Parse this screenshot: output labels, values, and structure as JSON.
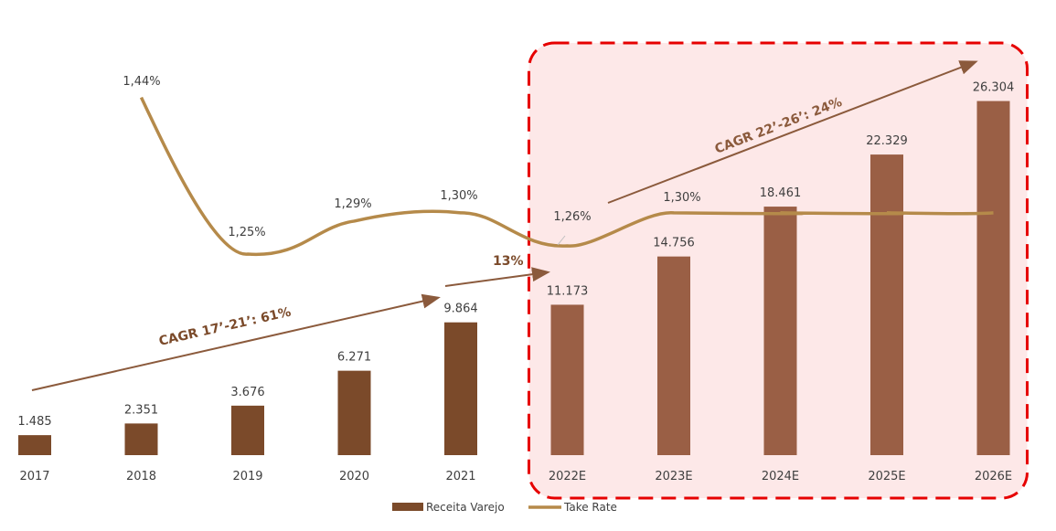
{
  "chart_data": {
    "type": "bar",
    "title": "",
    "xlabel": "",
    "ylabel": "",
    "categories": [
      "2017",
      "2018",
      "2019",
      "2020",
      "2021",
      "2022E",
      "2023E",
      "2024E",
      "2025E",
      "2026E"
    ],
    "series": [
      {
        "name": "Receita Varejo",
        "type": "bar",
        "values": [
          1485,
          2351,
          3676,
          6271,
          9864,
          11173,
          14756,
          18461,
          22329,
          26304
        ],
        "labels": [
          "1.485",
          "2.351",
          "3.676",
          "6.271",
          "9.864",
          "11.173",
          "14.756",
          "18.461",
          "22.329",
          "26.304"
        ]
      },
      {
        "name": "Take Rate",
        "type": "line",
        "values": [
          null,
          1.44,
          1.25,
          1.29,
          1.3,
          1.26,
          1.3,
          1.3,
          1.3,
          1.3
        ],
        "labels": [
          "",
          "1,44%",
          "1,25%",
          "1,29%",
          "1,30%",
          "1,26%",
          "1,30%",
          "",
          "",
          ""
        ]
      }
    ],
    "annotations": [
      {
        "text": "CAGR 17’-21’: 61%",
        "color": "#7b4a2a"
      },
      {
        "text": "13%",
        "color": "#7b4a2a"
      },
      {
        "text": "CAGR 22’-26’: 24%",
        "color": "#8b5a3c"
      }
    ],
    "highlight_region": {
      "from": "2022E",
      "to": "2026E",
      "fill": "#fde8e8",
      "stroke": "#e60000"
    },
    "legend": {
      "position": "bottom"
    },
    "grid": false,
    "colors": {
      "bar_actual": "#7b4a2a",
      "bar_estimate": "#9a5f45",
      "line": "#b58a4a",
      "arrow": "#8b5a3c",
      "text": "#3f3f3f"
    }
  }
}
